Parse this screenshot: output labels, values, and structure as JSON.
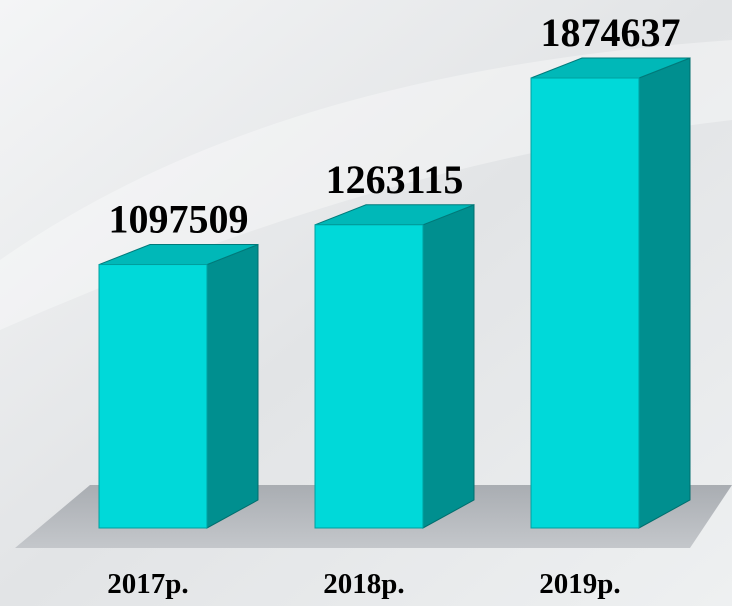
{
  "chart_data": {
    "type": "bar3d",
    "categories": [
      "2017р.",
      "2018р.",
      "2019р."
    ],
    "values": [
      1097509,
      1263115,
      1874637
    ],
    "color": "#00d9d9"
  }
}
